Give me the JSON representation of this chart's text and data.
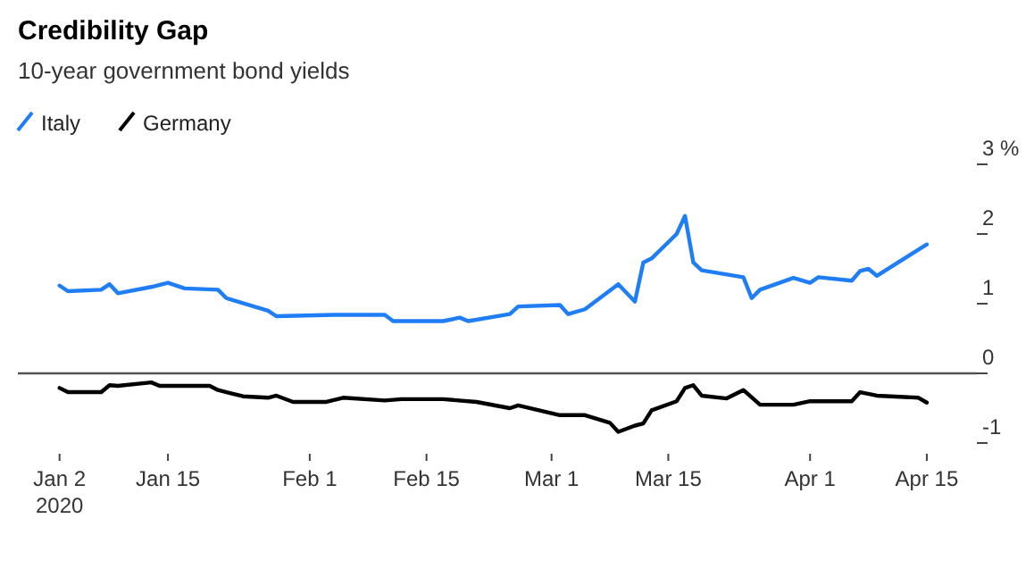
{
  "chart_data": {
    "type": "line",
    "title": "Credibility Gap",
    "subtitle": "10-year government bond yields",
    "xlim": [
      "2019-12-28",
      "2020-04-21"
    ],
    "xticks": [
      {
        "value": "2020-01-02",
        "label": "Jan 2\n2020"
      },
      {
        "value": "2020-01-15",
        "label": "Jan 15"
      },
      {
        "value": "2020-02-01",
        "label": "Feb 1"
      },
      {
        "value": "2020-02-15",
        "label": "Feb 15"
      },
      {
        "value": "2020-03-01",
        "label": "Mar 1"
      },
      {
        "value": "2020-03-15",
        "label": "Mar 15"
      },
      {
        "value": "2020-04-01",
        "label": "Apr 1"
      },
      {
        "value": "2020-04-15",
        "label": "Apr 15"
      }
    ],
    "ylim": [
      -1,
      3
    ],
    "yticks": [
      -1,
      0,
      1,
      2,
      {
        "value": 3,
        "label": "3 %"
      }
    ],
    "legend": "top left",
    "grid": false,
    "ref_lines": [
      {
        "axis": "y",
        "value": 0,
        "color": "#555555"
      }
    ],
    "series": [
      {
        "name": "Italy",
        "color": "#1f7ef5",
        "x": [
          "2020-01-02",
          "2020-01-03",
          "2020-01-07",
          "2020-01-08",
          "2020-01-09",
          "2020-01-13",
          "2020-01-15",
          "2020-01-17",
          "2020-01-21",
          "2020-01-22",
          "2020-01-27",
          "2020-01-28",
          "2020-02-04",
          "2020-02-10",
          "2020-02-11",
          "2020-02-17",
          "2020-02-19",
          "2020-02-20",
          "2020-02-25",
          "2020-02-26",
          "2020-03-02",
          "2020-03-03",
          "2020-03-05",
          "2020-03-09",
          "2020-03-11",
          "2020-03-12",
          "2020-03-13",
          "2020-03-16",
          "2020-03-17",
          "2020-03-18",
          "2020-03-19",
          "2020-03-24",
          "2020-03-25",
          "2020-03-26",
          "2020-03-30",
          "2020-04-01",
          "2020-04-02",
          "2020-04-06",
          "2020-04-07",
          "2020-04-08",
          "2020-04-09",
          "2020-04-15"
        ],
        "values": [
          1.26,
          1.18,
          1.2,
          1.28,
          1.15,
          1.24,
          1.3,
          1.22,
          1.2,
          1.08,
          0.9,
          0.82,
          0.84,
          0.84,
          0.75,
          0.75,
          0.8,
          0.75,
          0.85,
          0.96,
          0.98,
          0.85,
          0.92,
          1.28,
          1.03,
          1.59,
          1.65,
          2.0,
          2.26,
          1.59,
          1.48,
          1.38,
          1.08,
          1.2,
          1.37,
          1.3,
          1.38,
          1.33,
          1.47,
          1.5,
          1.4,
          1.85
        ]
      },
      {
        "name": "Germany",
        "color": "#000000",
        "x": [
          "2020-01-02",
          "2020-01-03",
          "2020-01-07",
          "2020-01-08",
          "2020-01-09",
          "2020-01-13",
          "2020-01-14",
          "2020-01-20",
          "2020-01-21",
          "2020-01-24",
          "2020-01-27",
          "2020-01-28",
          "2020-01-30",
          "2020-02-03",
          "2020-02-05",
          "2020-02-10",
          "2020-02-12",
          "2020-02-17",
          "2020-02-21",
          "2020-02-25",
          "2020-02-26",
          "2020-03-02",
          "2020-03-05",
          "2020-03-08",
          "2020-03-09",
          "2020-03-11",
          "2020-03-12",
          "2020-03-13",
          "2020-03-16",
          "2020-03-17",
          "2020-03-18",
          "2020-03-19",
          "2020-03-22",
          "2020-03-24",
          "2020-03-26",
          "2020-03-30",
          "2020-04-01",
          "2020-04-06",
          "2020-04-07",
          "2020-04-09",
          "2020-04-14",
          "2020-04-15"
        ],
        "values": [
          -0.21,
          -0.27,
          -0.27,
          -0.17,
          -0.18,
          -0.13,
          -0.18,
          -0.18,
          -0.24,
          -0.33,
          -0.35,
          -0.32,
          -0.41,
          -0.41,
          -0.35,
          -0.39,
          -0.37,
          -0.37,
          -0.41,
          -0.5,
          -0.46,
          -0.6,
          -0.6,
          -0.71,
          -0.84,
          -0.75,
          -0.72,
          -0.53,
          -0.4,
          -0.21,
          -0.17,
          -0.32,
          -0.36,
          -0.24,
          -0.45,
          -0.45,
          -0.4,
          -0.4,
          -0.27,
          -0.32,
          -0.35,
          -0.42
        ]
      }
    ]
  }
}
